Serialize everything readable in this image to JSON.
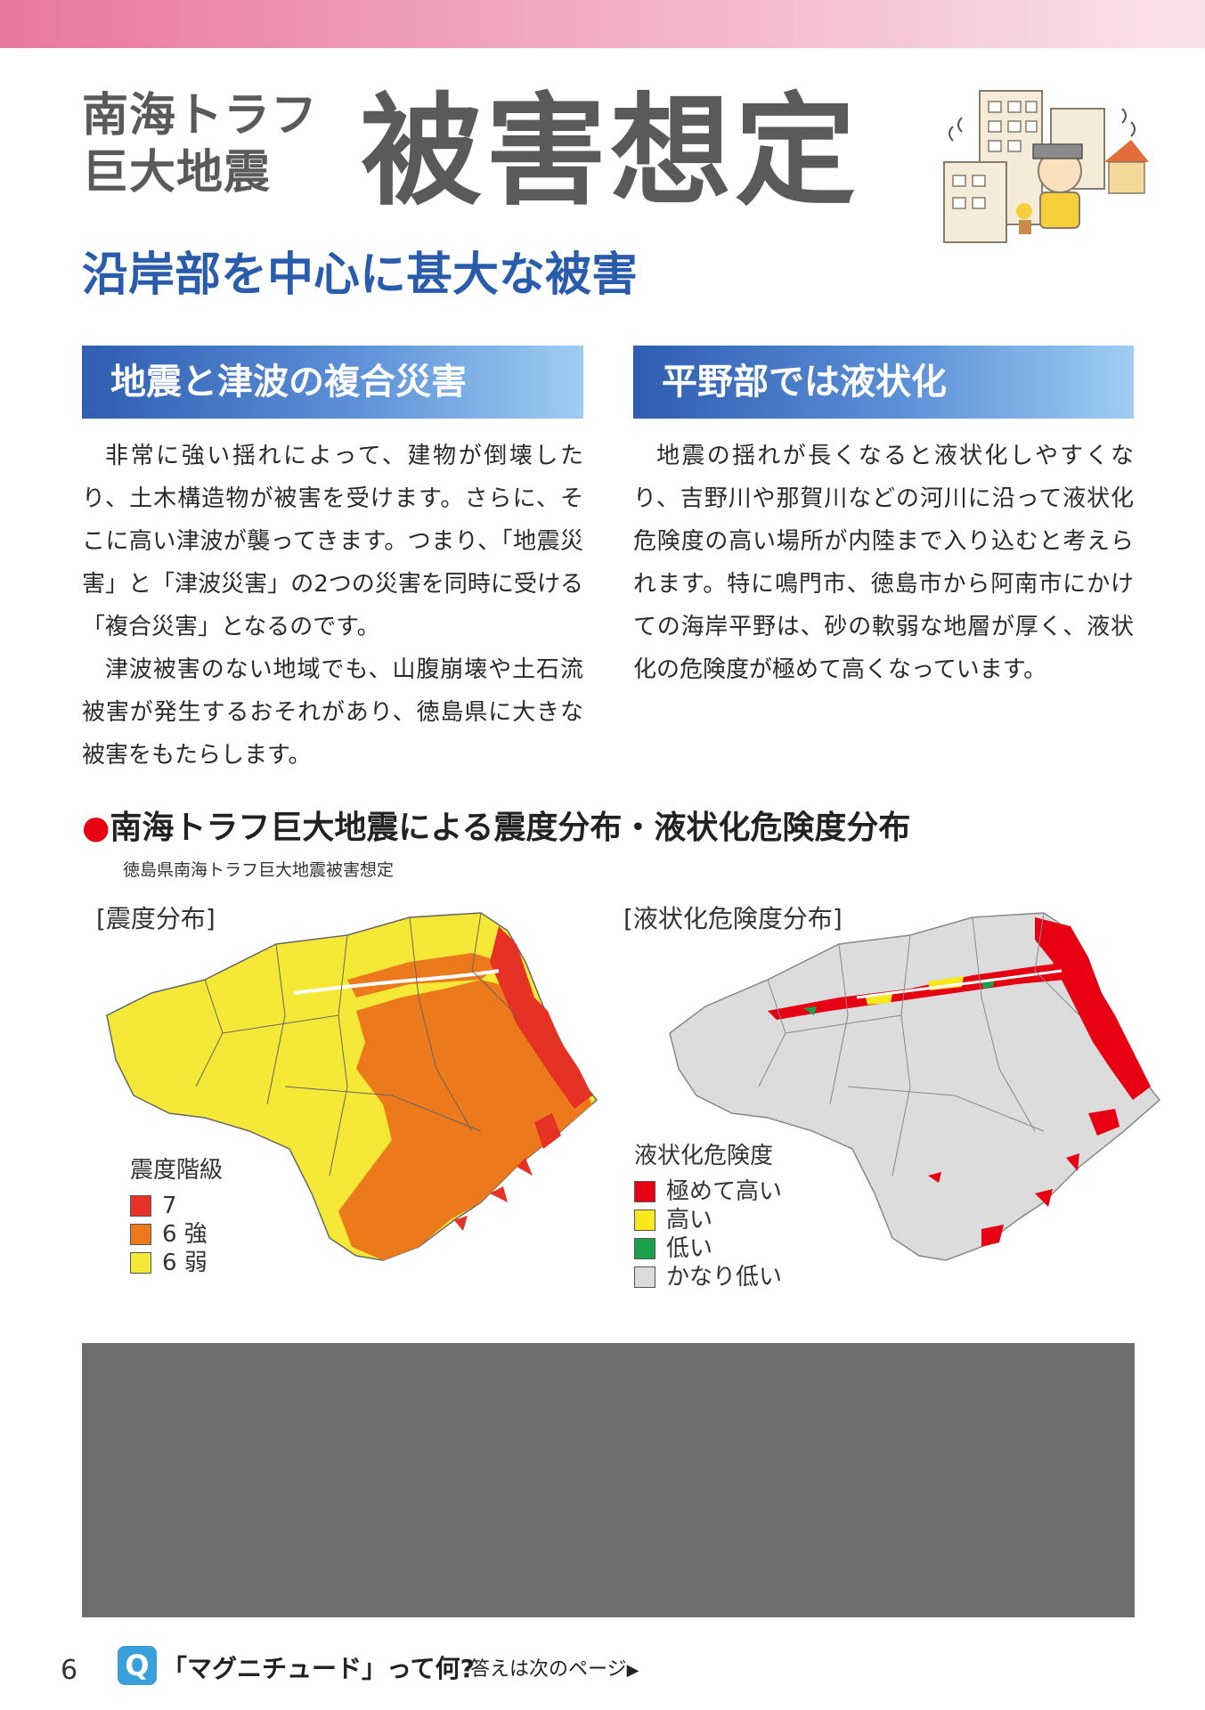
{
  "header": {
    "title_small_line1": "南海トラフ",
    "title_small_line2": "巨大地震",
    "title_big": "被害想定",
    "subtitle": "沿岸部を中心に甚大な被害"
  },
  "sections": [
    {
      "heading": "地震と津波の複合災害",
      "paragraphs": [
        "非常に強い揺れによって、建物が倒壊したり、土木構造物が被害を受けます。さらに、そこに高い津波が襲ってきます。つまり、「地震災害」と「津波災害」の2つの災害を同時に受ける「複合災害」となるのです。",
        "津波被害のない地域でも、山腹崩壊や土石流被害が発生するおそれがあり、徳島県に大きな被害をもたらします。"
      ]
    },
    {
      "heading": "平野部では液状化",
      "paragraphs": [
        "地震の揺れが長くなると液状化しやすくなり、吉野川や那賀川などの河川に沿って液状化危険度の高い場所が内陸まで入り込むと考えられます。特に鳴門市、徳島市から阿南市にかけての海岸平野は、砂の軟弱な地層が厚く、液状化の危険度が極めて高くなっています。"
      ]
    }
  ],
  "maps": {
    "heading_dot": "●",
    "heading": "南海トラフ巨大地震による震度分布・液状化危険度分布",
    "source": "徳島県南海トラフ巨大地震被害想定",
    "seismic": {
      "label": "[震度分布]",
      "legend_title": "震度階級",
      "legend": [
        {
          "label": "7",
          "color": "#e53225"
        },
        {
          "label": "6 強",
          "color": "#ec7a1c"
        },
        {
          "label": "6 弱",
          "color": "#f6e836"
        }
      ]
    },
    "liquefaction": {
      "label": "[液状化危険度分布]",
      "legend_title": "液状化危険度",
      "legend": [
        {
          "label": "極めて高い",
          "color": "#e60012"
        },
        {
          "label": "高い",
          "color": "#f8e81c"
        },
        {
          "label": "低い",
          "color": "#1aa04a"
        },
        {
          "label": "かなり低い",
          "color": "#dcdcdc"
        }
      ]
    }
  },
  "footer": {
    "page_number": "6",
    "q_icon": "Q",
    "question": "「マグニチュード」って何?",
    "answer_hint": "答えは次のページ",
    "arrow": "▶"
  }
}
